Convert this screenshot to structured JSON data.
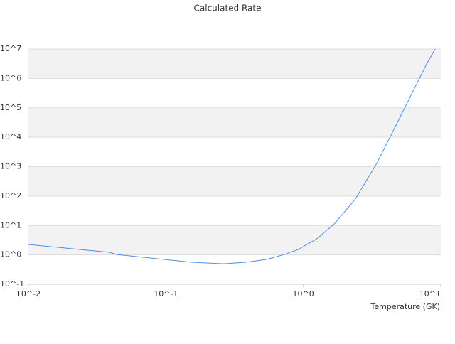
{
  "chart_data": {
    "type": "line",
    "title": "Calculated Rate",
    "x_label": "Temperature (GK)",
    "xscale": "log",
    "yscale": "log",
    "grid": true,
    "xlim": [
      0.01,
      10
    ],
    "ylim": [
      0.1,
      10000000
    ],
    "xticks": [
      {
        "value": 0.01,
        "label": "10^-2"
      },
      {
        "value": 0.1,
        "label": "10^-1"
      },
      {
        "value": 1,
        "label": "10^0"
      },
      {
        "value": 10,
        "label": "10^1"
      }
    ],
    "yticks": [
      {
        "value": 0.1,
        "label": "10^-1"
      },
      {
        "value": 1,
        "label": "10^0"
      },
      {
        "value": 10,
        "label": "10^1"
      },
      {
        "value": 100,
        "label": "10^2"
      },
      {
        "value": 1000,
        "label": "10^3"
      },
      {
        "value": 10000,
        "label": "10^4"
      },
      {
        "value": 100000,
        "label": "10^5"
      },
      {
        "value": 1000000,
        "label": "10^6"
      },
      {
        "value": 10000000,
        "label": "10^7"
      }
    ],
    "x": [
      0.01,
      0.039,
      0.044,
      0.155,
      0.264,
      0.38,
      0.54,
      0.73,
      0.92,
      1.25,
      1.68,
      2.39,
      3.42,
      4.9,
      5.85,
      7.89,
      9.1
    ],
    "series": [
      {
        "color": "#4a90e2",
        "values": [
          2.25,
          1.22,
          1.03,
          0.56,
          0.5,
          0.56,
          0.7,
          1.04,
          1.53,
          3.5,
          11.3,
          79,
          1290,
          36000,
          190000,
          3100000,
          10000000
        ]
      }
    ]
  }
}
